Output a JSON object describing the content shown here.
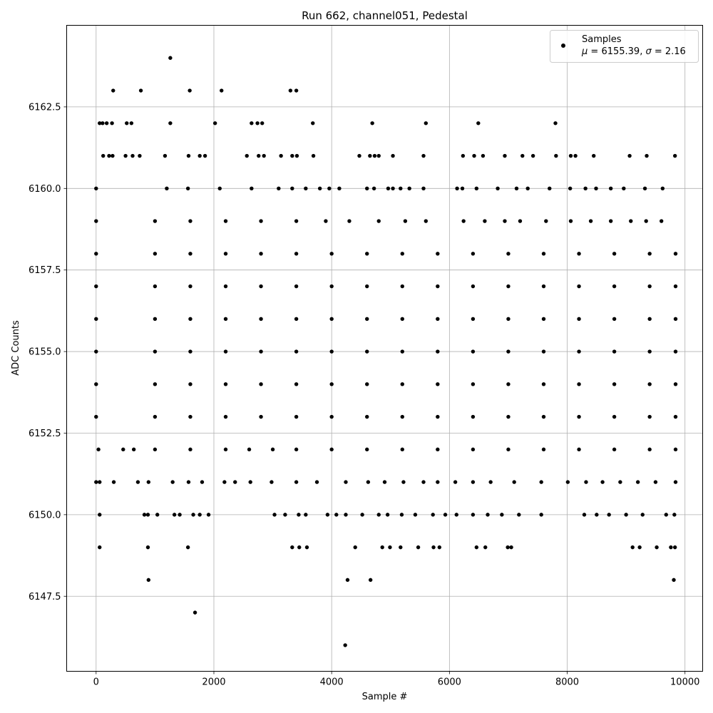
{
  "chart_data": {
    "type": "scatter",
    "title": "Run 662, channel051, Pedestal",
    "xlabel": "Sample #",
    "ylabel": "ADC Counts",
    "xlim": [
      -500,
      10300
    ],
    "ylim": [
      6145.2,
      6165.0
    ],
    "xticks": [
      0,
      2000,
      4000,
      6000,
      8000,
      10000
    ],
    "xtick_labels": [
      "0",
      "2000",
      "4000",
      "6000",
      "8000",
      "10000"
    ],
    "yticks": [
      6147.5,
      6150.0,
      6152.5,
      6155.0,
      6157.5,
      6160.0,
      6162.5
    ],
    "ytick_labels": [
      "6147.5",
      "6150.0",
      "6152.5",
      "6155.0",
      "6157.5",
      "6160.0",
      "6162.5"
    ],
    "grid": true,
    "marker_color": "#000000",
    "legend": {
      "position": "top-right",
      "series_name": "Samples",
      "stats_mu_symbol": "μ",
      "stats_mu_value": " = 6155.39, ",
      "stats_sigma_symbol": "σ",
      "stats_sigma_value": " = 2.16"
    },
    "series": [
      {
        "name": "Samples",
        "sample_range": [
          0,
          9840
        ],
        "levels": [
          {
            "y": 6164,
            "x": [
              1260
            ]
          },
          {
            "y": 6163,
            "x": [
              290,
              760,
              1590,
              2130,
              3300,
              3400
            ]
          },
          {
            "y": 6162,
            "x": [
              60,
              110,
              180,
              270,
              520,
              600,
              1260,
              2020,
              2640,
              2740,
              2820,
              3680,
              4690,
              5600,
              6490,
              7800
            ]
          },
          {
            "y": 6161,
            "x": [
              120,
              220,
              280,
              500,
              620,
              740,
              1170,
              1570,
              1760,
              1850,
              2560,
              2760,
              2850,
              3140,
              3330,
              3410,
              3690,
              4470,
              4650,
              4730,
              4800,
              5040,
              5560,
              6230,
              6420,
              6570,
              6940,
              7240,
              7420,
              7810,
              8060,
              8140,
              8450,
              9060,
              9350,
              9830
            ]
          },
          {
            "y": 6160,
            "x": [
              0,
              1200,
              1560,
              2100,
              2640,
              3100,
              3330,
              3560,
              3800,
              3960,
              4130,
              4600,
              4720,
              4960,
              5040,
              5170,
              5320,
              5560,
              6130,
              6220,
              6460,
              6820,
              7140,
              7330,
              7700,
              8050,
              8310,
              8490,
              8740,
              8960,
              9320,
              9620
            ]
          },
          {
            "y": 6159,
            "x": [
              0,
              1000,
              1600,
              2200,
              2800,
              3400,
              3900,
              4300,
              4800,
              5250,
              5600,
              6240,
              6600,
              6940,
              7200,
              7640,
              8060,
              8400,
              8740,
              9080,
              9340,
              9600
            ]
          },
          {
            "y": 6158,
            "x": [
              0,
              1000,
              1600,
              2200,
              2800,
              3400,
              4000,
              4600,
              5200,
              5800,
              6400,
              7000,
              7600,
              8200,
              8800,
              9400,
              9840
            ]
          },
          {
            "y": 6157,
            "x": [
              0,
              1000,
              1600,
              2200,
              2800,
              3400,
              4000,
              4600,
              5200,
              5800,
              6400,
              7000,
              7600,
              8200,
              8800,
              9400,
              9840
            ]
          },
          {
            "y": 6156,
            "x": [
              0,
              1000,
              1600,
              2200,
              2800,
              3400,
              4000,
              4600,
              5200,
              5800,
              6400,
              7000,
              7600,
              8200,
              8800,
              9400,
              9840
            ]
          },
          {
            "y": 6155,
            "x": [
              0,
              1000,
              1600,
              2200,
              2800,
              3400,
              4000,
              4600,
              5200,
              5800,
              6400,
              7000,
              7600,
              8200,
              8800,
              9400,
              9840
            ]
          },
          {
            "y": 6154,
            "x": [
              0,
              1000,
              1600,
              2200,
              2800,
              3400,
              4000,
              4600,
              5200,
              5800,
              6400,
              7000,
              7600,
              8200,
              8800,
              9400,
              9840
            ]
          },
          {
            "y": 6153,
            "x": [
              0,
              1000,
              1600,
              2200,
              2800,
              3400,
              4000,
              4600,
              5200,
              5800,
              6400,
              7000,
              7600,
              8200,
              8800,
              9400,
              9840
            ]
          },
          {
            "y": 6152,
            "x": [
              40,
              460,
              640,
              1000,
              1600,
              2200,
              2600,
              3000,
              3400,
              4000,
              4600,
              5200,
              5800,
              6400,
              7000,
              7600,
              8200,
              8800,
              9400,
              9840
            ]
          },
          {
            "y": 6151,
            "x": [
              0,
              60,
              300,
              710,
              890,
              1300,
              1570,
              1800,
              2180,
              2360,
              2620,
              2980,
              3400,
              3750,
              4240,
              4620,
              4900,
              5220,
              5560,
              5800,
              6100,
              6400,
              6700,
              7100,
              7560,
              8010,
              8320,
              8600,
              8900,
              9200,
              9500,
              9840
            ]
          },
          {
            "y": 6150,
            "x": [
              60,
              820,
              880,
              1040,
              1330,
              1420,
              1650,
              1760,
              1910,
              3030,
              3210,
              3440,
              3560,
              3930,
              4080,
              4240,
              4520,
              4800,
              4950,
              5190,
              5420,
              5720,
              5930,
              6120,
              6400,
              6650,
              6890,
              7180,
              7560,
              8290,
              8500,
              8710,
              9000,
              9280,
              9680,
              9820
            ]
          },
          {
            "y": 6149,
            "x": [
              60,
              880,
              1560,
              3330,
              3450,
              3580,
              4400,
              4860,
              4990,
              5170,
              5470,
              5730,
              5830,
              6460,
              6610,
              6990,
              7050,
              9110,
              9230,
              9520,
              9760,
              9830
            ]
          },
          {
            "y": 6148,
            "x": [
              890,
              4270,
              4660,
              9810
            ]
          },
          {
            "y": 6147,
            "x": [
              1680
            ]
          },
          {
            "y": 6146,
            "x": [
              4230
            ]
          }
        ]
      }
    ]
  }
}
